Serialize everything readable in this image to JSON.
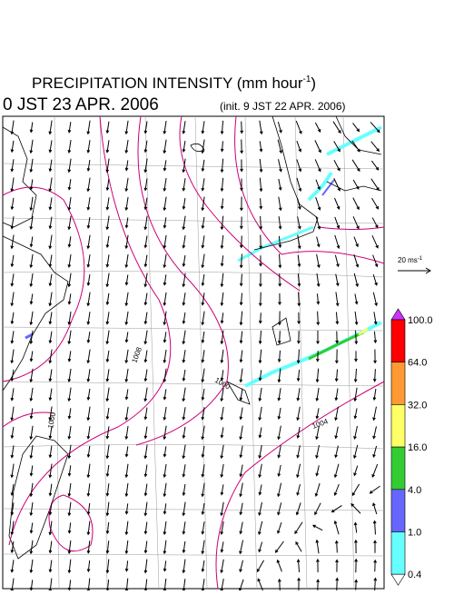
{
  "header": {
    "title_main": "PRECIPITATION INTENSITY (mm hour",
    "title_sup": "-1",
    "title_end": ")",
    "valid_time": "0 JST 23 APR. 2006",
    "init_time": "(init. 9 JST 22 APR. 2006)"
  },
  "wind_legend": {
    "label": "20 ms",
    "label_sup": "-1"
  },
  "colorbar": {
    "labels": [
      "100.0",
      "64.0",
      "32.0",
      "16.0",
      "4.0",
      "1.0",
      "0.4"
    ],
    "colors": [
      "#ff0000",
      "#ff9933",
      "#ffff66",
      "#33cc33",
      "#6666ff",
      "#66ffff"
    ],
    "over_color": "#cc33ff",
    "under_color": "#ffffff"
  },
  "map": {
    "contour_labels": [
      "1008",
      "1000",
      "1000",
      "1004"
    ]
  }
}
